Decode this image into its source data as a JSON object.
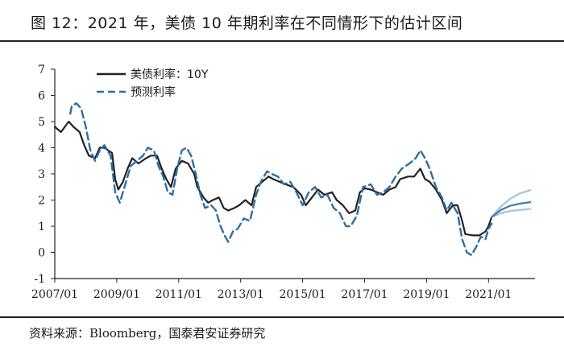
{
  "header": {
    "title": "图 12：2021 年，美债 10 年期利率在不同情形下的估计区间"
  },
  "footer": {
    "source": "资料来源：Bloomberg，国泰君安证券研究"
  },
  "chart_data": {
    "type": "line",
    "x_unit": "year",
    "xlim": [
      2007.0,
      2022.5
    ],
    "ylim": [
      -1,
      7
    ],
    "y_ticks": [
      "7",
      "6",
      "5",
      "4",
      "3",
      "2",
      "1",
      "0",
      "-1"
    ],
    "x_ticks": [
      "2007/01",
      "2009/01",
      "2011/01",
      "2013/01",
      "2015/01",
      "2017/01",
      "2019/01",
      "2021/01"
    ],
    "legend_placement": "top-left",
    "grid": false,
    "series": [
      {
        "name": "美债利率：10Y",
        "style": "solid",
        "color": "#222222",
        "points": [
          [
            2007.0,
            4.8
          ],
          [
            2007.2,
            4.6
          ],
          [
            2007.45,
            5.0
          ],
          [
            2007.6,
            4.8
          ],
          [
            2007.8,
            4.6
          ],
          [
            2007.95,
            4.1
          ],
          [
            2008.1,
            3.7
          ],
          [
            2008.3,
            3.6
          ],
          [
            2008.45,
            4.0
          ],
          [
            2008.6,
            4.0
          ],
          [
            2008.85,
            3.8
          ],
          [
            2008.95,
            2.8
          ],
          [
            2009.05,
            2.4
          ],
          [
            2009.2,
            2.7
          ],
          [
            2009.35,
            3.2
          ],
          [
            2009.5,
            3.6
          ],
          [
            2009.7,
            3.4
          ],
          [
            2009.95,
            3.6
          ],
          [
            2010.1,
            3.7
          ],
          [
            2010.3,
            3.7
          ],
          [
            2010.45,
            3.2
          ],
          [
            2010.6,
            2.8
          ],
          [
            2010.75,
            2.5
          ],
          [
            2010.9,
            3.2
          ],
          [
            2011.1,
            3.5
          ],
          [
            2011.3,
            3.4
          ],
          [
            2011.5,
            3.0
          ],
          [
            2011.6,
            2.5
          ],
          [
            2011.8,
            2.1
          ],
          [
            2011.95,
            1.9
          ],
          [
            2012.1,
            2.0
          ],
          [
            2012.3,
            2.1
          ],
          [
            2012.45,
            1.7
          ],
          [
            2012.6,
            1.6
          ],
          [
            2012.8,
            1.7
          ],
          [
            2012.95,
            1.8
          ],
          [
            2013.15,
            2.0
          ],
          [
            2013.35,
            1.8
          ],
          [
            2013.5,
            2.5
          ],
          [
            2013.7,
            2.7
          ],
          [
            2013.9,
            2.9
          ],
          [
            2014.05,
            2.8
          ],
          [
            2014.25,
            2.7
          ],
          [
            2014.45,
            2.6
          ],
          [
            2014.7,
            2.5
          ],
          [
            2014.95,
            2.2
          ],
          [
            2015.1,
            1.8
          ],
          [
            2015.3,
            2.1
          ],
          [
            2015.5,
            2.4
          ],
          [
            2015.7,
            2.2
          ],
          [
            2015.95,
            2.3
          ],
          [
            2016.1,
            2.0
          ],
          [
            2016.3,
            1.8
          ],
          [
            2016.5,
            1.5
          ],
          [
            2016.7,
            1.6
          ],
          [
            2016.85,
            2.3
          ],
          [
            2017.0,
            2.45
          ],
          [
            2017.2,
            2.4
          ],
          [
            2017.4,
            2.3
          ],
          [
            2017.6,
            2.2
          ],
          [
            2017.8,
            2.4
          ],
          [
            2018.0,
            2.5
          ],
          [
            2018.15,
            2.8
          ],
          [
            2018.4,
            2.9
          ],
          [
            2018.6,
            2.9
          ],
          [
            2018.8,
            3.2
          ],
          [
            2018.95,
            2.8
          ],
          [
            2019.1,
            2.7
          ],
          [
            2019.3,
            2.4
          ],
          [
            2019.5,
            2.0
          ],
          [
            2019.65,
            1.5
          ],
          [
            2019.85,
            1.8
          ],
          [
            2020.0,
            1.8
          ],
          [
            2020.15,
            1.2
          ],
          [
            2020.25,
            0.7
          ],
          [
            2020.5,
            0.65
          ],
          [
            2020.7,
            0.65
          ],
          [
            2020.9,
            0.8
          ],
          [
            2021.0,
            1.0
          ],
          [
            2021.1,
            1.35
          ]
        ]
      },
      {
        "name": "预测利率",
        "style": "dashed",
        "color": "#2e6ea3",
        "points": [
          [
            2007.5,
            5.3
          ],
          [
            2007.55,
            5.6
          ],
          [
            2007.7,
            5.7
          ],
          [
            2007.85,
            5.5
          ],
          [
            2008.0,
            4.8
          ],
          [
            2008.15,
            3.9
          ],
          [
            2008.3,
            3.5
          ],
          [
            2008.45,
            3.9
          ],
          [
            2008.6,
            4.1
          ],
          [
            2008.8,
            3.7
          ],
          [
            2008.95,
            2.3
          ],
          [
            2009.1,
            1.9
          ],
          [
            2009.25,
            2.5
          ],
          [
            2009.45,
            3.3
          ],
          [
            2009.65,
            3.5
          ],
          [
            2009.85,
            3.7
          ],
          [
            2010.0,
            4.0
          ],
          [
            2010.2,
            3.9
          ],
          [
            2010.35,
            3.3
          ],
          [
            2010.5,
            2.9
          ],
          [
            2010.65,
            2.3
          ],
          [
            2010.8,
            2.2
          ],
          [
            2010.95,
            3.2
          ],
          [
            2011.1,
            3.9
          ],
          [
            2011.25,
            4.0
          ],
          [
            2011.4,
            3.7
          ],
          [
            2011.55,
            3.0
          ],
          [
            2011.7,
            2.2
          ],
          [
            2011.85,
            1.7
          ],
          [
            2012.05,
            1.8
          ],
          [
            2012.2,
            1.6
          ],
          [
            2012.35,
            1.0
          ],
          [
            2012.5,
            0.6
          ],
          [
            2012.6,
            0.4
          ],
          [
            2012.75,
            0.8
          ],
          [
            2012.9,
            0.9
          ],
          [
            2013.1,
            1.3
          ],
          [
            2013.3,
            1.2
          ],
          [
            2013.5,
            2.2
          ],
          [
            2013.65,
            2.7
          ],
          [
            2013.85,
            3.1
          ],
          [
            2014.0,
            3.0
          ],
          [
            2014.2,
            2.9
          ],
          [
            2014.4,
            2.6
          ],
          [
            2014.6,
            2.7
          ],
          [
            2014.8,
            2.3
          ],
          [
            2015.0,
            1.8
          ],
          [
            2015.2,
            2.3
          ],
          [
            2015.4,
            2.5
          ],
          [
            2015.6,
            2.1
          ],
          [
            2015.8,
            2.2
          ],
          [
            2016.0,
            1.7
          ],
          [
            2016.2,
            1.5
          ],
          [
            2016.4,
            1.0
          ],
          [
            2016.55,
            1.0
          ],
          [
            2016.75,
            1.4
          ],
          [
            2016.95,
            2.5
          ],
          [
            2017.2,
            2.6
          ],
          [
            2017.4,
            2.2
          ],
          [
            2017.6,
            2.3
          ],
          [
            2017.8,
            2.5
          ],
          [
            2018.0,
            2.9
          ],
          [
            2018.2,
            3.2
          ],
          [
            2018.45,
            3.4
          ],
          [
            2018.65,
            3.6
          ],
          [
            2018.8,
            3.9
          ],
          [
            2018.95,
            3.6
          ],
          [
            2019.1,
            3.2
          ],
          [
            2019.3,
            2.5
          ],
          [
            2019.5,
            2.1
          ],
          [
            2019.65,
            1.6
          ],
          [
            2019.8,
            1.9
          ],
          [
            2020.0,
            1.5
          ],
          [
            2020.15,
            0.5
          ],
          [
            2020.3,
            0.0
          ],
          [
            2020.45,
            -0.1
          ],
          [
            2020.6,
            0.2
          ],
          [
            2020.75,
            0.6
          ],
          [
            2020.9,
            0.5
          ],
          [
            2021.0,
            0.9
          ],
          [
            2021.1,
            1.1
          ]
        ]
      },
      {
        "name": "",
        "style": "solid-light",
        "color": "#a9c6e0",
        "points": [
          [
            2021.1,
            1.35
          ],
          [
            2021.4,
            1.75
          ],
          [
            2021.7,
            2.05
          ],
          [
            2022.0,
            2.25
          ],
          [
            2022.35,
            2.38
          ]
        ]
      },
      {
        "name": "",
        "style": "solid-light",
        "color": "#a9c6e0",
        "points": [
          [
            2021.1,
            1.35
          ],
          [
            2021.4,
            1.5
          ],
          [
            2021.7,
            1.58
          ],
          [
            2022.0,
            1.62
          ],
          [
            2022.35,
            1.66
          ]
        ]
      },
      {
        "name": "",
        "style": "solid-mid",
        "color": "#3e7eb5",
        "points": [
          [
            2021.1,
            1.35
          ],
          [
            2021.4,
            1.62
          ],
          [
            2021.7,
            1.78
          ],
          [
            2022.0,
            1.86
          ],
          [
            2022.35,
            1.92
          ]
        ]
      }
    ]
  }
}
